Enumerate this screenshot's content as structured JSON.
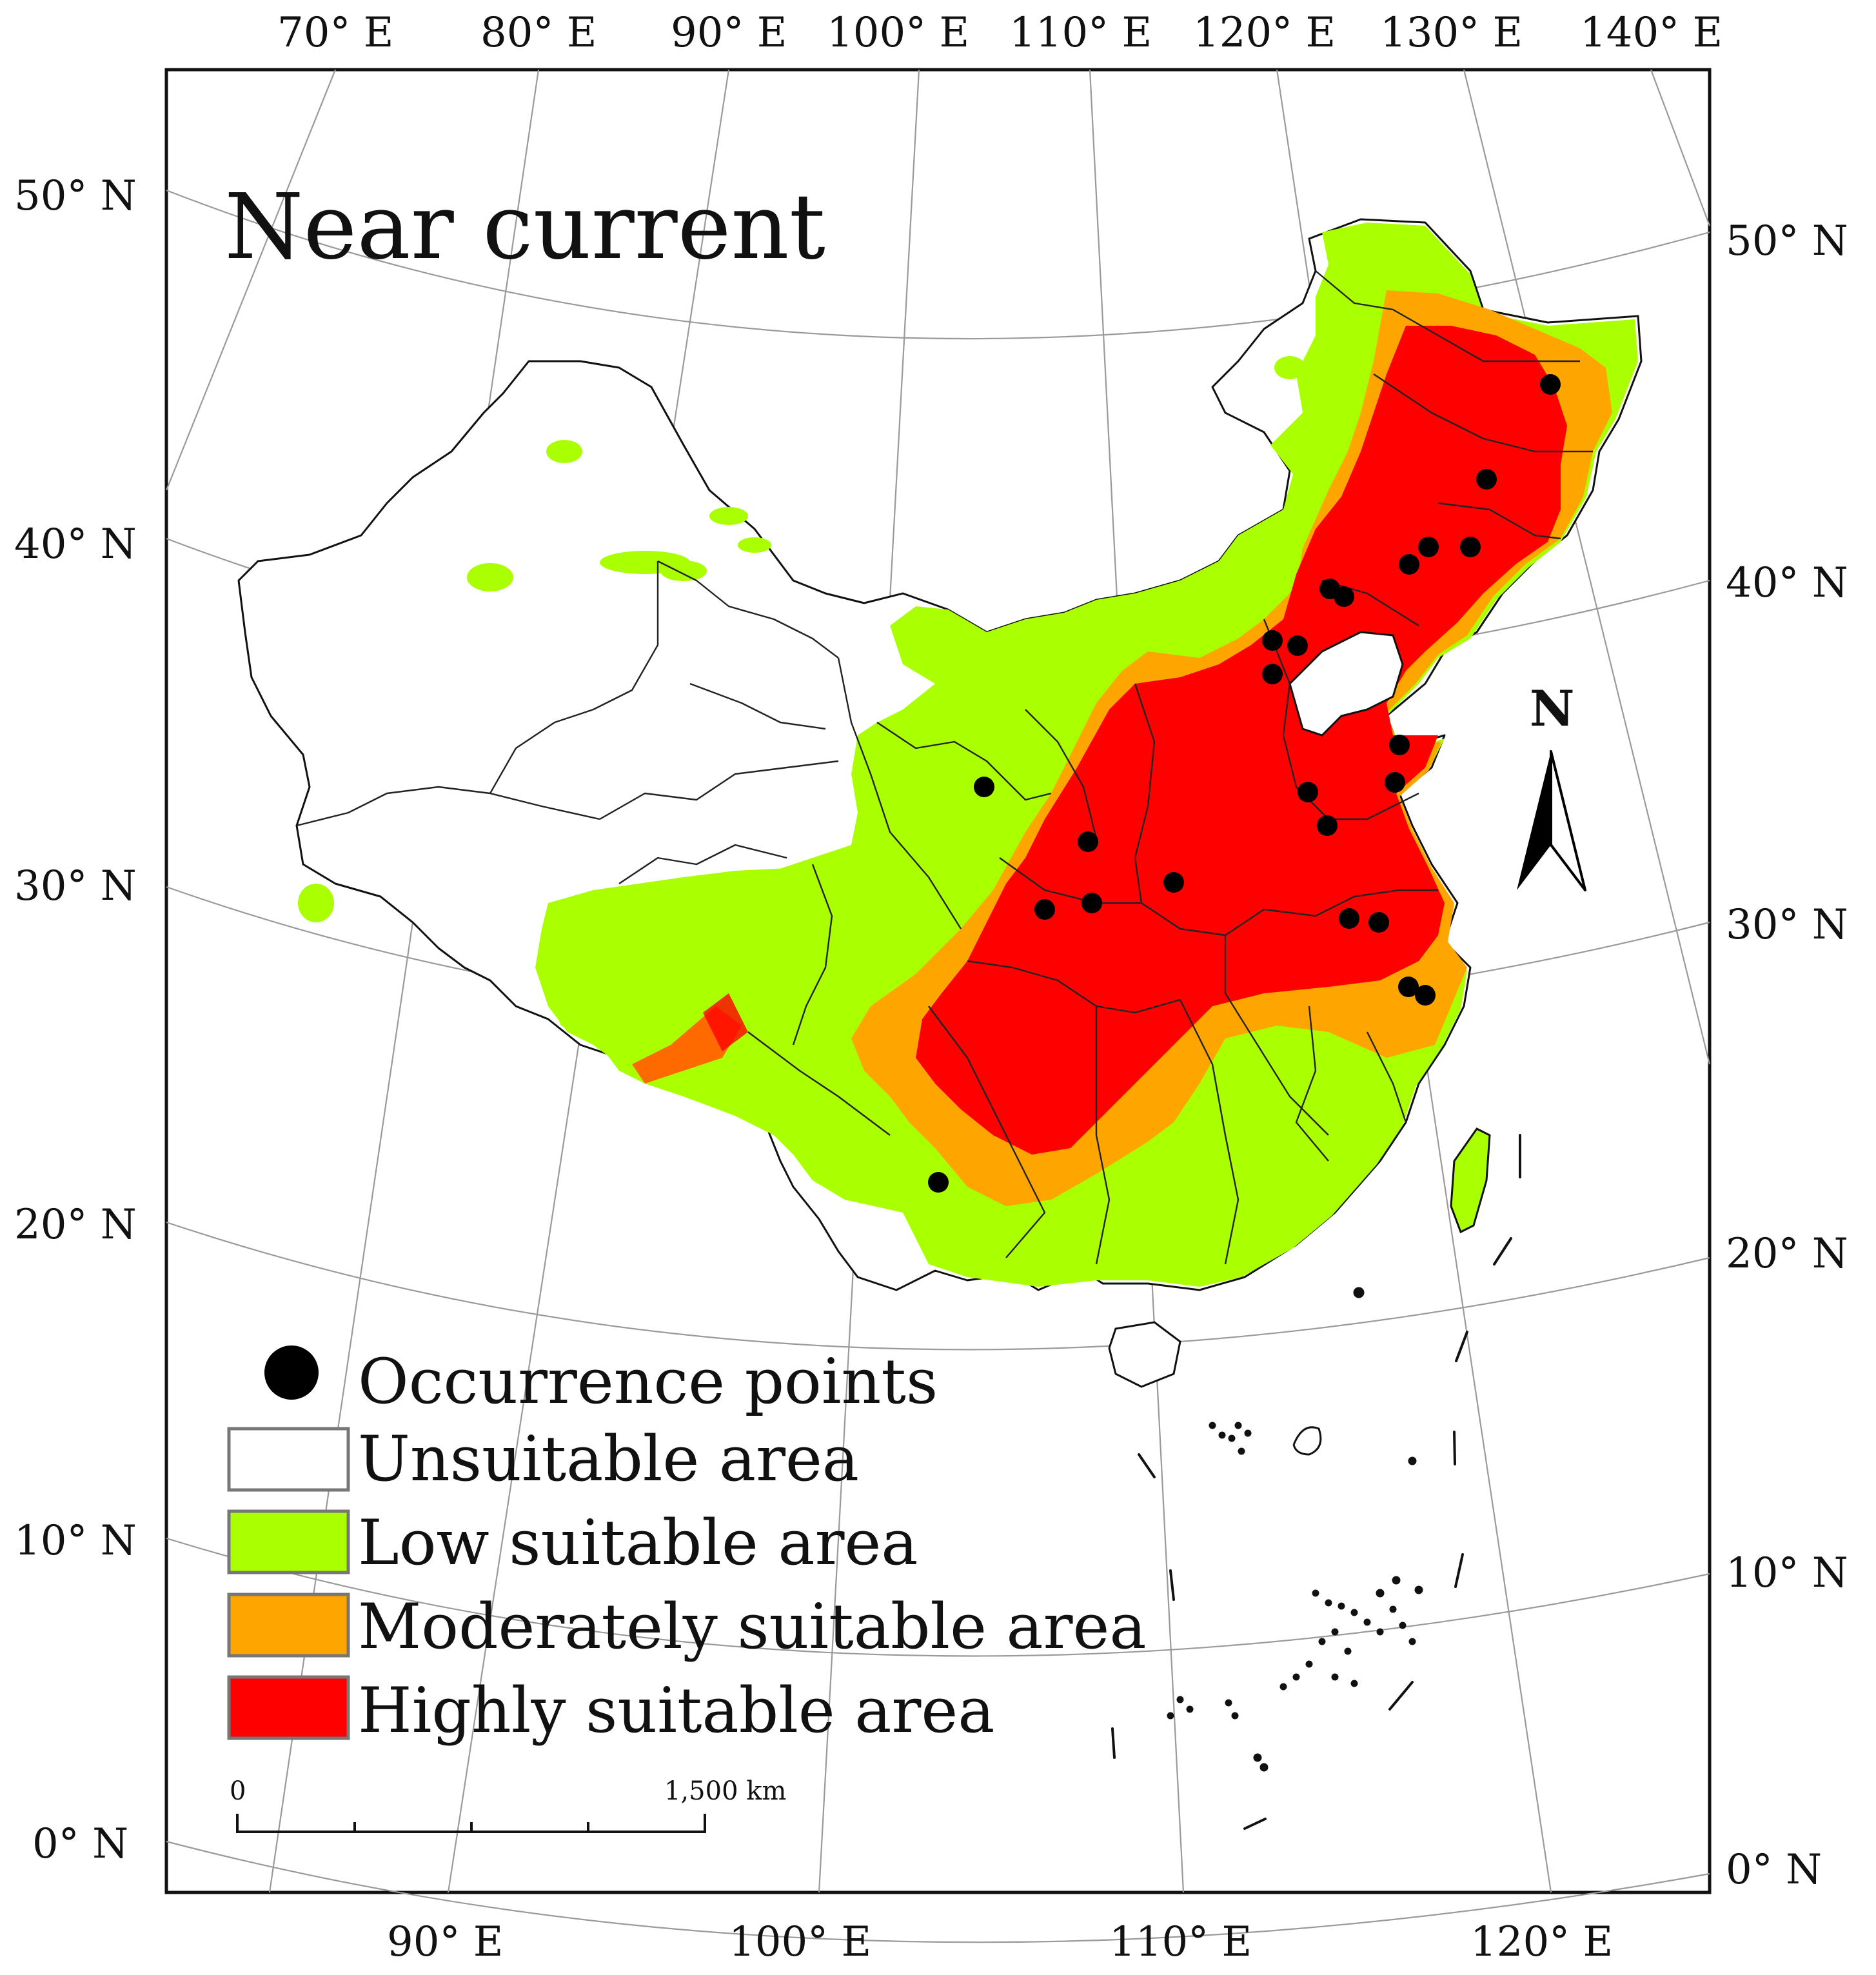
{
  "map": {
    "title": "Near current",
    "top_longitude_labels": [
      "70° E",
      "80° E",
      "90° E",
      "100° E",
      "110° E",
      "120° E",
      "130° E",
      "140° E"
    ],
    "bottom_longitude_labels": [
      "90° E",
      "100° E",
      "110° E",
      "120° E"
    ],
    "left_latitude_labels": [
      "50° N",
      "40° N",
      "30° N",
      "20° N",
      "10° N",
      "0° N"
    ],
    "right_latitude_labels": [
      "50° N",
      "40° N",
      "30° N",
      "20° N",
      "10° N",
      "0° N"
    ],
    "north_arrow_label": "N",
    "scale_bar": {
      "start_label": "0",
      "end_label": "1,500 km"
    },
    "colors": {
      "unsuitable": "#ffffff",
      "low": "#aaff00",
      "moderate": "#ffa500",
      "high": "#ff0000",
      "points": "#000000"
    }
  },
  "legend": {
    "items": [
      {
        "key": "points",
        "label": "Occurrence points"
      },
      {
        "key": "unsuitable",
        "label": "Unsuitable area"
      },
      {
        "key": "low",
        "label": "Low suitable area"
      },
      {
        "key": "moderate",
        "label": "Moderately suitable area"
      },
      {
        "key": "high",
        "label": "Highly suitable area"
      }
    ]
  }
}
